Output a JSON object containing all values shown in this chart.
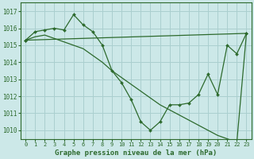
{
  "title": "Graphe pression niveau de la mer (hPa)",
  "bg_color": "#cce8e8",
  "grid_color": "#aacfcf",
  "line_color": "#2d6a2d",
  "marker_color": "#2d6a2d",
  "xlim": [
    -0.5,
    23.5
  ],
  "ylim": [
    1009.5,
    1017.5
  ],
  "yticks": [
    1010,
    1011,
    1012,
    1013,
    1014,
    1015,
    1016,
    1017
  ],
  "xticks": [
    0,
    1,
    2,
    3,
    4,
    5,
    6,
    7,
    8,
    9,
    10,
    11,
    12,
    13,
    14,
    15,
    16,
    17,
    18,
    19,
    20,
    21,
    22,
    23
  ],
  "series": [
    {
      "x": [
        0,
        1,
        2,
        3,
        4,
        5,
        6,
        7,
        8,
        9,
        10,
        11,
        12,
        13,
        14,
        15,
        16,
        17,
        18,
        19,
        20,
        21,
        22,
        23
      ],
      "y": [
        1015.3,
        1015.8,
        1015.9,
        1016.0,
        1015.9,
        1016.8,
        1016.2,
        1015.8,
        1015.0,
        1013.5,
        1012.8,
        1011.8,
        1010.5,
        1010.0,
        1010.5,
        1011.5,
        1011.5,
        1011.6,
        1012.1,
        1013.3,
        1012.1,
        1015.0,
        1014.5,
        1015.7
      ]
    },
    {
      "x": [
        0,
        23
      ],
      "y": [
        1015.3,
        1015.7
      ]
    },
    {
      "x": [
        0,
        1,
        2,
        3,
        4,
        5,
        6,
        7,
        8,
        9,
        10,
        11,
        12,
        13,
        14,
        15,
        16,
        17,
        18,
        19,
        20,
        21,
        22,
        23
      ],
      "y": [
        1015.3,
        1015.5,
        1015.6,
        1015.4,
        1015.2,
        1015.0,
        1014.8,
        1014.4,
        1014.0,
        1013.5,
        1013.1,
        1012.7,
        1012.3,
        1011.9,
        1011.5,
        1011.2,
        1010.9,
        1010.6,
        1010.3,
        1010.0,
        1009.7,
        1009.5,
        1009.3,
        1015.7
      ]
    }
  ]
}
